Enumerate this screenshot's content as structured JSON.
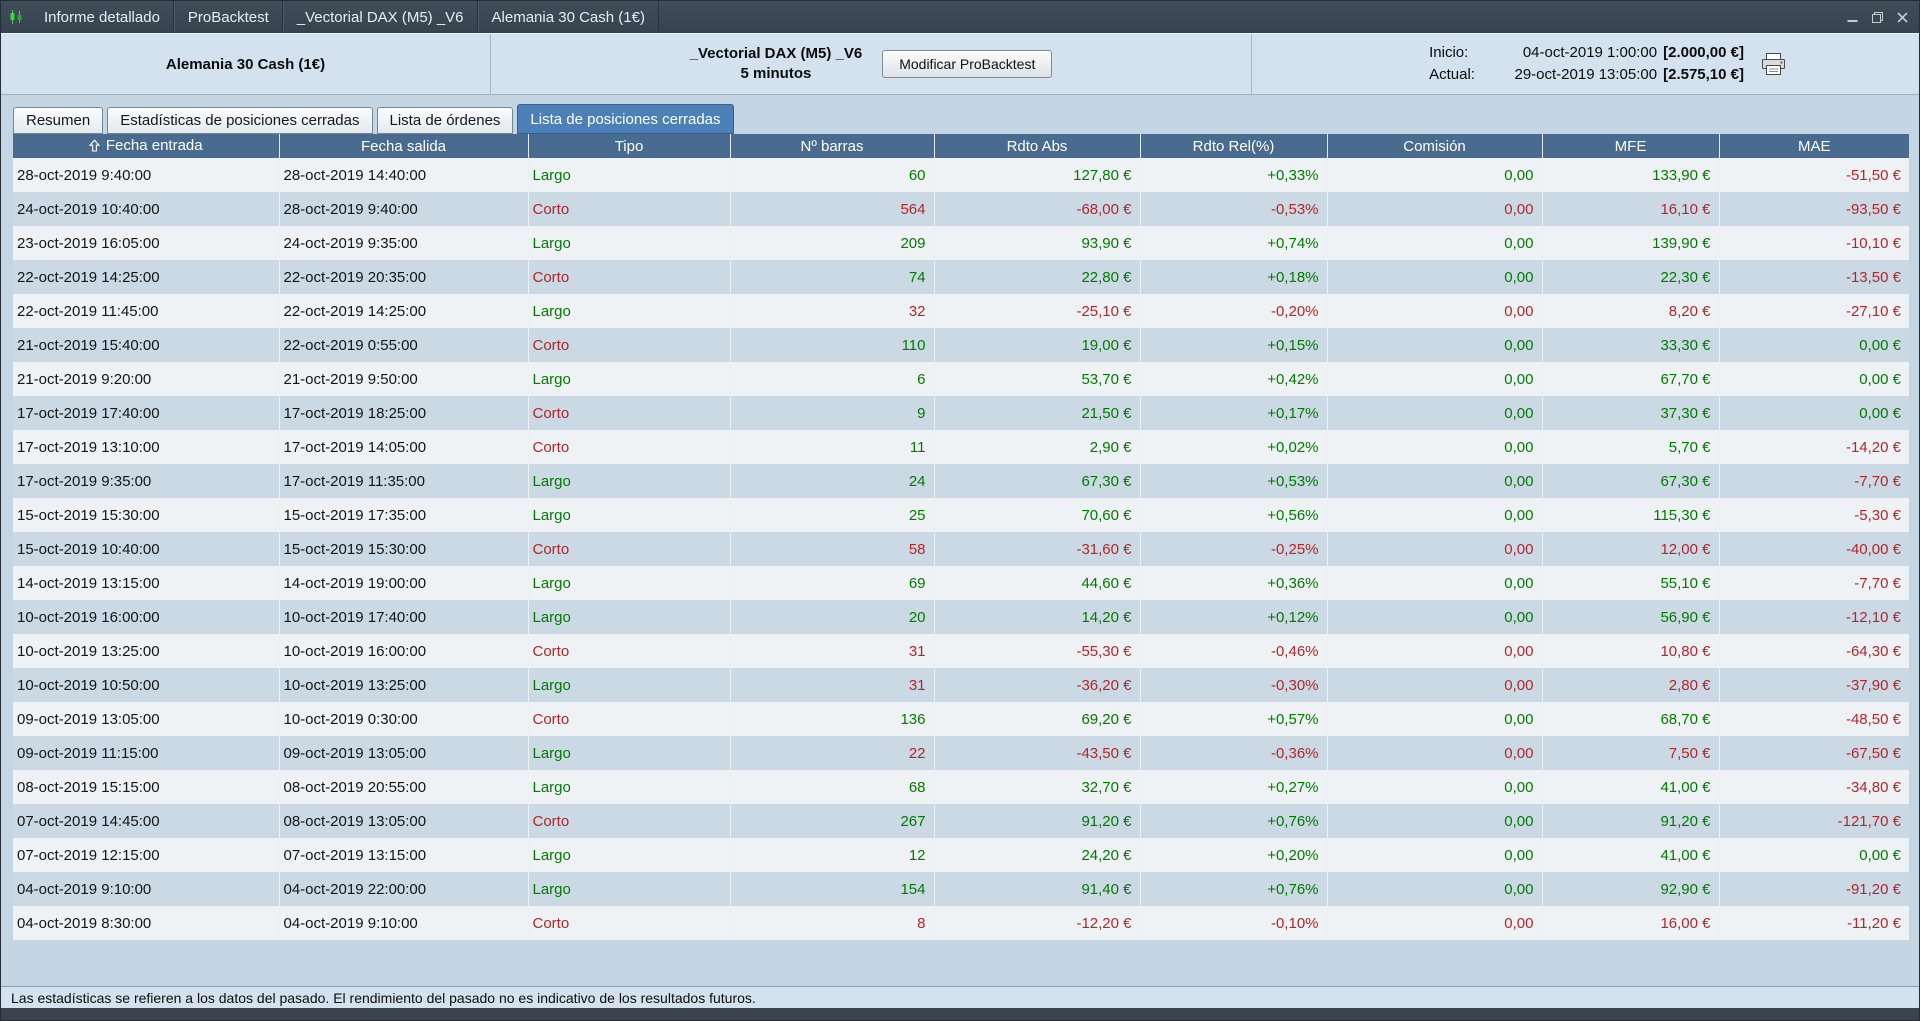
{
  "colors": {
    "green": "#007b00",
    "red": "#b3262a",
    "accent": "#4d80b6"
  },
  "titlebar": {
    "items": [
      "Informe detallado",
      "ProBacktest",
      "_Vectorial DAX (M5) _V6",
      "Alemania 30 Cash (1€)"
    ]
  },
  "header": {
    "instrument": "Alemania 30 Cash (1€)",
    "system_name": "_Vectorial DAX (M5) _V6",
    "timeframe": "5 minutos",
    "modify_button": "Modificar ProBacktest",
    "inicio_label": "Inicio:",
    "inicio_datetime": "04-oct-2019 1:00:00",
    "inicio_amount": "[2.000,00 €]",
    "actual_label": "Actual:",
    "actual_datetime": "29-oct-2019 13:05:00",
    "actual_amount": "[2.575,10 €]"
  },
  "tabs": [
    {
      "label": "Resumen",
      "active": false
    },
    {
      "label": "Estadísticas de posiciones cerradas",
      "active": false
    },
    {
      "label": "Lista de órdenes",
      "active": false
    },
    {
      "label": "Lista de posiciones cerradas",
      "active": true
    }
  ],
  "table": {
    "columns": [
      "Fecha entrada",
      "Fecha salida",
      "Tipo",
      "Nº barras",
      "Rdto Abs",
      "Rdto Rel(%)",
      "Comisión",
      "MFE",
      "MAE"
    ],
    "rows": [
      {
        "entrada": "28-oct-2019 9:40:00",
        "salida": "28-oct-2019 14:40:00",
        "tipo": "Largo",
        "barras": "60",
        "rdto_abs": "127,80 €",
        "rdto_rel": "+0,33%",
        "comision": "0,00",
        "mfe": "133,90 €",
        "mae": "-51,50 €"
      },
      {
        "entrada": "24-oct-2019 10:40:00",
        "salida": "28-oct-2019 9:40:00",
        "tipo": "Corto",
        "barras": "564",
        "rdto_abs": "-68,00 €",
        "rdto_rel": "-0,53%",
        "comision": "0,00",
        "mfe": "16,10 €",
        "mae": "-93,50 €"
      },
      {
        "entrada": "23-oct-2019 16:05:00",
        "salida": "24-oct-2019 9:35:00",
        "tipo": "Largo",
        "barras": "209",
        "rdto_abs": "93,90 €",
        "rdto_rel": "+0,74%",
        "comision": "0,00",
        "mfe": "139,90 €",
        "mae": "-10,10 €"
      },
      {
        "entrada": "22-oct-2019 14:25:00",
        "salida": "22-oct-2019 20:35:00",
        "tipo": "Corto",
        "barras": "74",
        "rdto_abs": "22,80 €",
        "rdto_rel": "+0,18%",
        "comision": "0,00",
        "mfe": "22,30 €",
        "mae": "-13,50 €"
      },
      {
        "entrada": "22-oct-2019 11:45:00",
        "salida": "22-oct-2019 14:25:00",
        "tipo": "Largo",
        "barras": "32",
        "rdto_abs": "-25,10 €",
        "rdto_rel": "-0,20%",
        "comision": "0,00",
        "mfe": "8,20 €",
        "mae": "-27,10 €"
      },
      {
        "entrada": "21-oct-2019 15:40:00",
        "salida": "22-oct-2019 0:55:00",
        "tipo": "Corto",
        "barras": "110",
        "rdto_abs": "19,00 €",
        "rdto_rel": "+0,15%",
        "comision": "0,00",
        "mfe": "33,30 €",
        "mae": "0,00 €"
      },
      {
        "entrada": "21-oct-2019 9:20:00",
        "salida": "21-oct-2019 9:50:00",
        "tipo": "Largo",
        "barras": "6",
        "rdto_abs": "53,70 €",
        "rdto_rel": "+0,42%",
        "comision": "0,00",
        "mfe": "67,70 €",
        "mae": "0,00 €"
      },
      {
        "entrada": "17-oct-2019 17:40:00",
        "salida": "17-oct-2019 18:25:00",
        "tipo": "Corto",
        "barras": "9",
        "rdto_abs": "21,50 €",
        "rdto_rel": "+0,17%",
        "comision": "0,00",
        "mfe": "37,30 €",
        "mae": "0,00 €"
      },
      {
        "entrada": "17-oct-2019 13:10:00",
        "salida": "17-oct-2019 14:05:00",
        "tipo": "Corto",
        "barras": "11",
        "rdto_abs": "2,90 €",
        "rdto_rel": "+0,02%",
        "comision": "0,00",
        "mfe": "5,70 €",
        "mae": "-14,20 €"
      },
      {
        "entrada": "17-oct-2019 9:35:00",
        "salida": "17-oct-2019 11:35:00",
        "tipo": "Largo",
        "barras": "24",
        "rdto_abs": "67,30 €",
        "rdto_rel": "+0,53%",
        "comision": "0,00",
        "mfe": "67,30 €",
        "mae": "-7,70 €"
      },
      {
        "entrada": "15-oct-2019 15:30:00",
        "salida": "15-oct-2019 17:35:00",
        "tipo": "Largo",
        "barras": "25",
        "rdto_abs": "70,60 €",
        "rdto_rel": "+0,56%",
        "comision": "0,00",
        "mfe": "115,30 €",
        "mae": "-5,30 €"
      },
      {
        "entrada": "15-oct-2019 10:40:00",
        "salida": "15-oct-2019 15:30:00",
        "tipo": "Corto",
        "barras": "58",
        "rdto_abs": "-31,60 €",
        "rdto_rel": "-0,25%",
        "comision": "0,00",
        "mfe": "12,00 €",
        "mae": "-40,00 €"
      },
      {
        "entrada": "14-oct-2019 13:15:00",
        "salida": "14-oct-2019 19:00:00",
        "tipo": "Largo",
        "barras": "69",
        "rdto_abs": "44,60 €",
        "rdto_rel": "+0,36%",
        "comision": "0,00",
        "mfe": "55,10 €",
        "mae": "-7,70 €"
      },
      {
        "entrada": "10-oct-2019 16:00:00",
        "salida": "10-oct-2019 17:40:00",
        "tipo": "Largo",
        "barras": "20",
        "rdto_abs": "14,20 €",
        "rdto_rel": "+0,12%",
        "comision": "0,00",
        "mfe": "56,90 €",
        "mae": "-12,10 €"
      },
      {
        "entrada": "10-oct-2019 13:25:00",
        "salida": "10-oct-2019 16:00:00",
        "tipo": "Corto",
        "barras": "31",
        "rdto_abs": "-55,30 €",
        "rdto_rel": "-0,46%",
        "comision": "0,00",
        "mfe": "10,80 €",
        "mae": "-64,30 €"
      },
      {
        "entrada": "10-oct-2019 10:50:00",
        "salida": "10-oct-2019 13:25:00",
        "tipo": "Largo",
        "barras": "31",
        "rdto_abs": "-36,20 €",
        "rdto_rel": "-0,30%",
        "comision": "0,00",
        "mfe": "2,80 €",
        "mae": "-37,90 €"
      },
      {
        "entrada": "09-oct-2019 13:05:00",
        "salida": "10-oct-2019 0:30:00",
        "tipo": "Corto",
        "barras": "136",
        "rdto_abs": "69,20 €",
        "rdto_rel": "+0,57%",
        "comision": "0,00",
        "mfe": "68,70 €",
        "mae": "-48,50 €"
      },
      {
        "entrada": "09-oct-2019 11:15:00",
        "salida": "09-oct-2019 13:05:00",
        "tipo": "Largo",
        "barras": "22",
        "rdto_abs": "-43,50 €",
        "rdto_rel": "-0,36%",
        "comision": "0,00",
        "mfe": "7,50 €",
        "mae": "-67,50 €"
      },
      {
        "entrada": "08-oct-2019 15:15:00",
        "salida": "08-oct-2019 20:55:00",
        "tipo": "Largo",
        "barras": "68",
        "rdto_abs": "32,70 €",
        "rdto_rel": "+0,27%",
        "comision": "0,00",
        "mfe": "41,00 €",
        "mae": "-34,80 €"
      },
      {
        "entrada": "07-oct-2019 14:45:00",
        "salida": "08-oct-2019 13:05:00",
        "tipo": "Corto",
        "barras": "267",
        "rdto_abs": "91,20 €",
        "rdto_rel": "+0,76%",
        "comision": "0,00",
        "mfe": "91,20 €",
        "mae": "-121,70 €"
      },
      {
        "entrada": "07-oct-2019 12:15:00",
        "salida": "07-oct-2019 13:15:00",
        "tipo": "Largo",
        "barras": "12",
        "rdto_abs": "24,20 €",
        "rdto_rel": "+0,20%",
        "comision": "0,00",
        "mfe": "41,00 €",
        "mae": "0,00 €"
      },
      {
        "entrada": "04-oct-2019 9:10:00",
        "salida": "04-oct-2019 22:00:00",
        "tipo": "Largo",
        "barras": "154",
        "rdto_abs": "91,40 €",
        "rdto_rel": "+0,76%",
        "comision": "0,00",
        "mfe": "92,90 €",
        "mae": "-91,20 €"
      },
      {
        "entrada": "04-oct-2019 8:30:00",
        "salida": "04-oct-2019 9:10:00",
        "tipo": "Corto",
        "barras": "8",
        "rdto_abs": "-12,20 €",
        "rdto_rel": "-0,10%",
        "comision": "0,00",
        "mfe": "16,00 €",
        "mae": "-11,20 €"
      }
    ]
  },
  "footer": "Las estadísticas se refieren a los datos del pasado. El rendimiento del pasado no es indicativo de los resultados futuros."
}
